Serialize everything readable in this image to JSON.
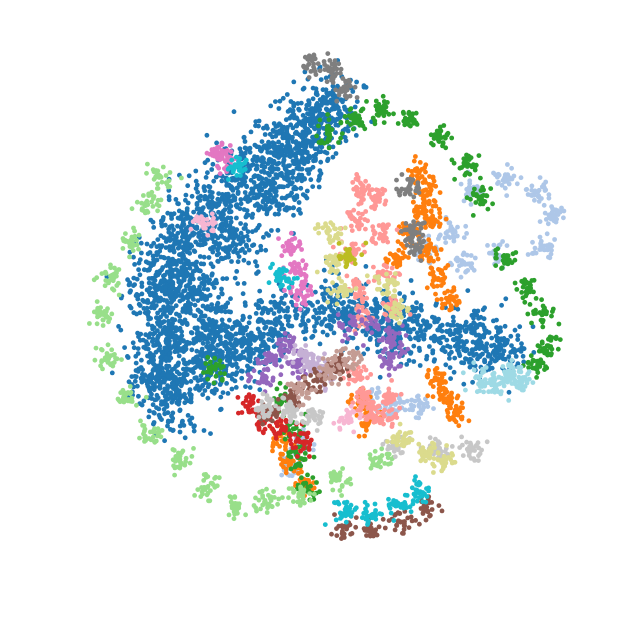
{
  "chart_data": {
    "type": "scatter",
    "title": "",
    "xlabel": "",
    "ylabel": "",
    "axes_visible": false,
    "grid": false,
    "legend": "none",
    "xlim": [
      -10,
      10
    ],
    "ylim": [
      -10,
      10
    ],
    "series": [
      {
        "color": "#1f77b4",
        "marker_size": 3,
        "points": [
          [
            -4.8,
            1.7
          ],
          [
            -4.2,
            2.7
          ],
          [
            -3.4,
            3.6
          ],
          [
            -2.4,
            4.5
          ],
          [
            -1.3,
            5.4
          ],
          [
            -0.3,
            6.1
          ],
          [
            0.3,
            6.8
          ],
          [
            -0.6,
            5.2
          ],
          [
            -1.4,
            4.0
          ],
          [
            -2.8,
            2.6
          ],
          [
            -4.0,
            1.0
          ],
          [
            -5.0,
            0.6
          ],
          [
            -4.8,
            -0.6
          ],
          [
            -3.2,
            -0.4
          ],
          [
            -1.4,
            0.0
          ],
          [
            0.3,
            0.4
          ],
          [
            1.7,
            0.0
          ],
          [
            2.8,
            -0.3
          ],
          [
            4.3,
            -0.6
          ],
          [
            5.5,
            -0.9
          ],
          [
            -5.0,
            -1.6
          ],
          [
            -4.6,
            -2.5
          ],
          [
            -3.5,
            -1.4
          ],
          [
            -2.4,
            -1.0
          ]
        ]
      },
      {
        "color": "#aec7e8",
        "marker_size": 3,
        "points": [
          [
            4.7,
            4.1
          ],
          [
            5.8,
            4.4
          ],
          [
            6.8,
            4.0
          ],
          [
            7.3,
            3.3
          ],
          [
            6.9,
            2.3
          ],
          [
            5.6,
            2.0
          ],
          [
            4.5,
            1.8
          ],
          [
            4.1,
            2.8
          ],
          [
            3.3,
            2.2
          ],
          [
            1.6,
            -2.5
          ],
          [
            2.3,
            -2.8
          ],
          [
            3.1,
            -2.7
          ],
          [
            -0.5,
            -3.8
          ],
          [
            -0.9,
            -4.6
          ]
        ]
      },
      {
        "color": "#ff7f0e",
        "marker_size": 3,
        "points": [
          [
            3.1,
            4.6
          ],
          [
            3.4,
            4.0
          ],
          [
            3.2,
            3.4
          ],
          [
            2.8,
            2.7
          ],
          [
            2.4,
            1.9
          ],
          [
            3.4,
            2.2
          ],
          [
            3.5,
            3.1
          ],
          [
            3.7,
            1.3
          ],
          [
            4.0,
            0.6
          ],
          [
            3.6,
            -1.8
          ],
          [
            3.9,
            -2.3
          ],
          [
            4.2,
            -2.9
          ],
          [
            1.2,
            -2.6
          ],
          [
            1.5,
            -3.1
          ],
          [
            -1.3,
            -3.6
          ],
          [
            -1.0,
            -4.4
          ],
          [
            -0.5,
            -5.1
          ]
        ]
      },
      {
        "color": "#2ca02c",
        "marker_size": 3,
        "points": [
          [
            0.3,
            5.8
          ],
          [
            1.1,
            6.3
          ],
          [
            1.9,
            6.5
          ],
          [
            2.8,
            6.3
          ],
          [
            3.8,
            5.7
          ],
          [
            4.6,
            4.8
          ],
          [
            5.0,
            3.8
          ],
          [
            5.8,
            1.9
          ],
          [
            6.5,
            1.0
          ],
          [
            7.0,
            0.2
          ],
          [
            7.1,
            -0.8
          ],
          [
            6.8,
            -1.4
          ],
          [
            -1.1,
            -2.5
          ],
          [
            -0.8,
            -3.4
          ],
          [
            -0.7,
            -4.3
          ],
          [
            -0.4,
            -5.3
          ],
          [
            -3.3,
            -1.5
          ]
        ]
      },
      {
        "color": "#98df8a",
        "marker_size": 3,
        "points": [
          [
            -5.0,
            4.5
          ],
          [
            -5.4,
            3.6
          ],
          [
            -5.9,
            2.5
          ],
          [
            -6.5,
            1.4
          ],
          [
            -6.8,
            0.2
          ],
          [
            -6.6,
            -1.2
          ],
          [
            -6.1,
            -2.4
          ],
          [
            -5.3,
            -3.5
          ],
          [
            -4.4,
            -4.4
          ],
          [
            -3.5,
            -5.2
          ],
          [
            -2.6,
            -5.8
          ],
          [
            -1.7,
            -5.7
          ],
          [
            -0.6,
            -5.5
          ],
          [
            0.6,
            -5.0
          ],
          [
            1.9,
            -4.4
          ]
        ]
      },
      {
        "color": "#d62728",
        "marker_size": 3,
        "points": [
          [
            -1.8,
            -3.1
          ],
          [
            -1.2,
            -3.3
          ],
          [
            -0.5,
            -3.8
          ],
          [
            -2.2,
            -2.6
          ]
        ]
      },
      {
        "color": "#ff9896",
        "marker_size": 3,
        "points": [
          [
            1.3,
            4.1
          ],
          [
            1.1,
            3.1
          ],
          [
            1.0,
            2.1
          ],
          [
            1.1,
            1.0
          ],
          [
            1.3,
            0.1
          ],
          [
            1.8,
            3.8
          ],
          [
            1.9,
            2.6
          ],
          [
            2.0,
            1.4
          ],
          [
            2.2,
            0.4
          ],
          [
            1.1,
            -1.7
          ],
          [
            1.3,
            -2.4
          ],
          [
            1.6,
            -2.9
          ],
          [
            2.0,
            -3.0
          ],
          [
            2.3,
            -2.4
          ]
        ]
      },
      {
        "color": "#9467bd",
        "marker_size": 3,
        "points": [
          [
            1.0,
            -0.1
          ],
          [
            1.8,
            -0.2
          ],
          [
            2.3,
            -0.7
          ],
          [
            2.2,
            -1.3
          ],
          [
            -1.8,
            -1.8
          ],
          [
            -1.5,
            -1.2
          ],
          [
            -1.1,
            -0.8
          ],
          [
            -0.7,
            -1.4
          ]
        ]
      },
      {
        "color": "#c5b0d5",
        "marker_size": 3,
        "points": [
          [
            -0.5,
            -1.1
          ],
          [
            -0.2,
            -1.4
          ],
          [
            0.2,
            -1.7
          ]
        ]
      },
      {
        "color": "#8c564b",
        "marker_size": 3,
        "points": [
          [
            0.7,
            -6.6
          ],
          [
            1.6,
            -6.5
          ],
          [
            2.5,
            -6.3
          ],
          [
            3.3,
            -5.9
          ],
          [
            -1.6,
            -2.9
          ],
          [
            -0.9,
            -2.4
          ],
          [
            -0.2,
            -1.9
          ],
          [
            0.6,
            -1.5
          ]
        ]
      },
      {
        "color": "#c49c94",
        "marker_size": 3,
        "points": [
          [
            -0.6,
            -2.2
          ],
          [
            0.2,
            -1.6
          ],
          [
            0.9,
            -1.2
          ]
        ]
      },
      {
        "color": "#e377c2",
        "marker_size": 3,
        "points": [
          [
            -3.1,
            5.2
          ],
          [
            -2.9,
            5.0
          ],
          [
            -0.9,
            2.3
          ],
          [
            -0.7,
            1.5
          ],
          [
            -0.6,
            0.8
          ]
        ]
      },
      {
        "color": "#f7b6d2",
        "marker_size": 3,
        "points": [
          [
            -3.6,
            3.0
          ],
          [
            0.9,
            -3.1
          ]
        ]
      },
      {
        "color": "#7f7f7f",
        "marker_size": 3,
        "points": [
          [
            -0.2,
            8.0
          ],
          [
            0.4,
            7.8
          ],
          [
            0.8,
            7.2
          ],
          [
            2.9,
            2.8
          ],
          [
            3.0,
            2.3
          ],
          [
            2.8,
            4.2
          ]
        ]
      },
      {
        "color": "#c7c7c7",
        "marker_size": 3,
        "points": [
          [
            -1.7,
            -2.7
          ],
          [
            -1.0,
            -2.8
          ],
          [
            -0.2,
            -3.0
          ],
          [
            2.4,
            -3.9
          ],
          [
            3.6,
            -4.0
          ],
          [
            4.7,
            -4.0
          ]
        ]
      },
      {
        "color": "#dbdb8d",
        "marker_size": 3,
        "points": [
          [
            0.3,
            2.8
          ],
          [
            0.4,
            1.8
          ],
          [
            0.7,
            0.9
          ],
          [
            2.1,
            1.1
          ],
          [
            2.4,
            0.3
          ],
          [
            2.6,
            -3.7
          ],
          [
            3.3,
            -4.2
          ],
          [
            3.9,
            -4.4
          ]
        ]
      },
      {
        "color": "#bcbd22",
        "marker_size": 3,
        "points": [
          [
            0.9,
            2.0
          ]
        ]
      },
      {
        "color": "#17becf",
        "marker_size": 3,
        "points": [
          [
            0.8,
            -6.0
          ],
          [
            1.6,
            -6.1
          ],
          [
            2.4,
            -5.8
          ],
          [
            3.1,
            -5.4
          ],
          [
            -2.6,
            4.8
          ],
          [
            -1.2,
            1.3
          ]
        ]
      },
      {
        "color": "#9edae5",
        "marker_size": 3,
        "points": [
          [
            5.0,
            -1.9
          ],
          [
            5.6,
            -2.0
          ],
          [
            6.3,
            -1.9
          ],
          [
            5.9,
            -1.6
          ]
        ]
      }
    ]
  }
}
